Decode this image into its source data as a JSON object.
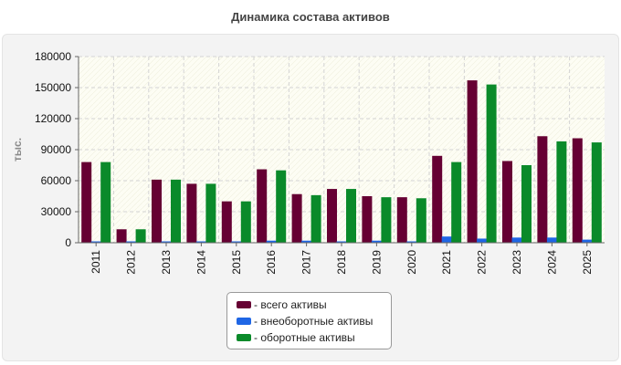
{
  "chart_data": {
    "type": "bar",
    "title": "Динамика состава активов",
    "ylabel": "тыс.",
    "xlabel": "",
    "ylim": [
      0,
      180000
    ],
    "yticks": [
      0,
      30000,
      60000,
      90000,
      120000,
      150000,
      180000
    ],
    "categories": [
      "2011",
      "2012",
      "2013",
      "2014",
      "2015",
      "2016",
      "2017",
      "2018",
      "2019",
      "2020",
      "2021",
      "2022",
      "2023",
      "2024",
      "2025"
    ],
    "series": [
      {
        "name": "- всего активы",
        "color": "#660033",
        "values": [
          78000,
          13000,
          61000,
          57000,
          40000,
          71000,
          47000,
          52000,
          45000,
          44000,
          84000,
          157000,
          79000,
          103000,
          101000
        ]
      },
      {
        "name": "- внеоборотные активы",
        "color": "#1f66e5",
        "values": [
          500,
          500,
          500,
          500,
          500,
          2000,
          2000,
          500,
          2000,
          500,
          6000,
          4000,
          5000,
          5000,
          3000
        ]
      },
      {
        "name": "- оборотные активы",
        "color": "#0a8a2a",
        "values": [
          78000,
          13000,
          61000,
          57000,
          40000,
          70000,
          46000,
          52000,
          44000,
          43000,
          78000,
          153000,
          75000,
          98000,
          97000
        ]
      }
    ],
    "grid": true,
    "legend_position": "bottom"
  }
}
